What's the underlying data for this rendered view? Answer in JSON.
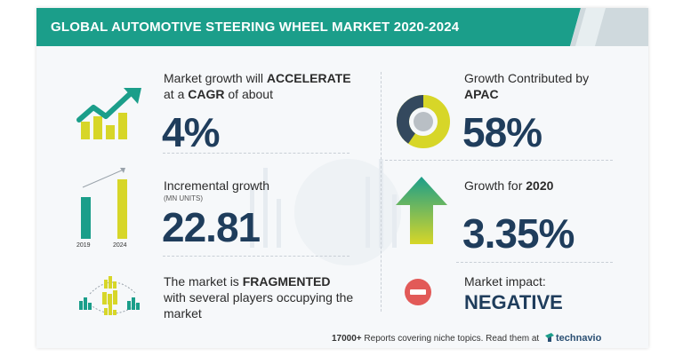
{
  "title": "GLOBAL AUTOMOTIVE STEERING WHEEL MARKET 2020-2024",
  "colors": {
    "teal": "#1b9e8a",
    "yellow": "#d7d628",
    "navy": "#1f3d5c",
    "red": "#e25a58",
    "darkslate": "#34495e"
  },
  "left": {
    "growth": {
      "line1_prefix": "Market growth will ",
      "line1_bold": "ACCELERATE",
      "line2_prefix": "at a ",
      "line2_bold": "CAGR",
      "line2_suffix": " of about",
      "value": "4%"
    },
    "incremental": {
      "label": "Incremental growth",
      "units": "(MN UNITS)",
      "value": "22.81",
      "bar_years": [
        "2019",
        "2024"
      ]
    },
    "market": {
      "prefix": "The market is ",
      "bold": "FRAGMENTED",
      "line2": "with several players occupying the",
      "line3": "market"
    }
  },
  "right": {
    "apac": {
      "line1": "Growth Contributed by",
      "line2": "APAC",
      "value": "58%"
    },
    "growth2020": {
      "label_prefix": "Growth for ",
      "label_bold": "2020",
      "value": "3.35%"
    },
    "impact": {
      "label": "Market impact:",
      "value": "NEGATIVE"
    }
  },
  "footer": {
    "count": "17000+",
    "text": " Reports covering niche topics. Read them at",
    "brand": "technavio"
  },
  "icons": [
    "growth-chart-icon",
    "bar-comparison-icon",
    "fragmented-market-icon",
    "donut-chart-icon",
    "up-arrow-icon",
    "minus-circle-icon",
    "technavio-logo-icon"
  ]
}
